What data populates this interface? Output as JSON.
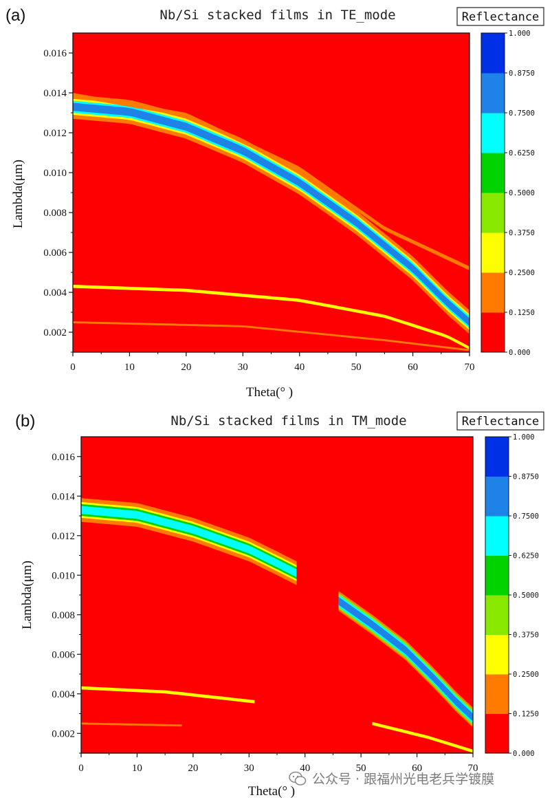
{
  "chart_data": [
    {
      "type": "heatmap",
      "panel_label": "(a)",
      "title": "Nb/Si stacked films in TE_mode",
      "xlabel": "Theta(° )",
      "ylabel": "Lambda(μm)",
      "xlim": [
        0,
        70
      ],
      "ylim": [
        0.001,
        0.017
      ],
      "xticks": [
        0,
        10,
        20,
        30,
        40,
        50,
        60,
        70
      ],
      "yticks": [
        0.002,
        0.004,
        0.006,
        0.008,
        0.01,
        0.012,
        0.014,
        0.016
      ],
      "ytick_labels": [
        "0.002",
        "0.004",
        "0.006",
        "0.008",
        "0.010",
        "0.012",
        "0.014",
        "0.016"
      ],
      "colorbar": {
        "title": "Reflectance",
        "levels": [
          0.0,
          0.125,
          0.25,
          0.375,
          0.5,
          0.625,
          0.75,
          0.875,
          1.0
        ],
        "labels": [
          "0.000",
          "0.1250",
          "0.2500",
          "0.3750",
          "0.5000",
          "0.6250",
          "0.7500",
          "0.8750",
          "1.000"
        ],
        "colors": [
          "#ff0000",
          "#ff7b00",
          "#ffff00",
          "#88e800",
          "#00d200",
          "#00ffff",
          "#1e82e6",
          "#0030e6"
        ]
      },
      "background_level": 0.05,
      "bands": [
        {
          "name": "main-bragg-band",
          "theta": [
            0,
            10,
            20,
            30,
            40,
            50,
            60,
            66,
            70
          ],
          "center": [
            0.0133,
            0.01305,
            0.0123,
            0.0111,
            0.0095,
            0.0075,
            0.0052,
            0.0035,
            0.0025
          ],
          "layers": [
            [
              0.0006,
              0.125
            ],
            [
              0.0004,
              0.25
            ],
            [
              0.0003,
              0.625
            ],
            [
              0.0002,
              0.75
            ]
          ]
        },
        {
          "name": "upper-edge-fringe",
          "theta": [
            0,
            20,
            40,
            55,
            70
          ],
          "center": [
            0.0139,
            0.0129,
            0.0102,
            0.0072,
            0.0052
          ],
          "layers": [
            [
              0.0001,
              0.125
            ]
          ]
        },
        {
          "name": "second-order-band",
          "theta": [
            0,
            20,
            40,
            55,
            66,
            70
          ],
          "center": [
            0.0043,
            0.0041,
            0.0036,
            0.0028,
            0.0018,
            0.0012
          ],
          "layers": [
            [
              8e-05,
              0.25
            ]
          ]
        },
        {
          "name": "third-order-band",
          "theta": [
            0,
            30,
            55,
            70
          ],
          "center": [
            0.0025,
            0.0023,
            0.0016,
            0.0011
          ],
          "layers": [
            [
              5e-05,
              0.125
            ]
          ]
        }
      ]
    },
    {
      "type": "heatmap",
      "panel_label": "(b)",
      "title": "Nb/Si stacked films in TM_mode",
      "xlabel": "Theta(° )",
      "ylabel": "Lambda(μm)",
      "xlim": [
        0,
        70
      ],
      "ylim": [
        0.001,
        0.017
      ],
      "xticks": [
        0,
        10,
        20,
        30,
        40,
        50,
        60,
        70
      ],
      "yticks": [
        0.002,
        0.004,
        0.006,
        0.008,
        0.01,
        0.012,
        0.014,
        0.016
      ],
      "ytick_labels": [
        "0.002",
        "0.004",
        "0.006",
        "0.008",
        "0.010",
        "0.012",
        "0.014",
        "0.016"
      ],
      "colorbar": {
        "title": "Reflectance",
        "levels": [
          0.0,
          0.125,
          0.25,
          0.375,
          0.5,
          0.625,
          0.75,
          0.875,
          1.0
        ],
        "labels": [
          "0.000",
          "0.1250",
          "0.2500",
          "0.3750",
          "0.5000",
          "0.6250",
          "0.7500",
          "0.8750",
          "1.000"
        ],
        "colors": [
          "#ff0000",
          "#ff7b00",
          "#ffff00",
          "#88e800",
          "#00d200",
          "#00ffff",
          "#1e82e6",
          "#0030e6"
        ]
      },
      "background_level": 0.05,
      "bands": [
        {
          "name": "main-band-low-angle",
          "theta": [
            0,
            10,
            20,
            30,
            35,
            38.5
          ],
          "center": [
            0.0133,
            0.01305,
            0.0123,
            0.0113,
            0.0106,
            0.0101
          ],
          "layers": [
            [
              0.0006,
              0.125
            ],
            [
              0.0004,
              0.25
            ],
            [
              0.0003,
              0.5
            ],
            [
              0.0002,
              0.625
            ]
          ]
        },
        {
          "name": "main-band-high-angle",
          "theta": [
            46,
            52,
            58,
            63,
            67,
            70
          ],
          "center": [
            0.0087,
            0.0075,
            0.0062,
            0.0048,
            0.0036,
            0.0028
          ],
          "layers": [
            [
              0.0005,
              0.125
            ],
            [
              0.0004,
              0.375
            ],
            [
              0.0003,
              0.625
            ],
            [
              0.0002,
              0.75
            ]
          ]
        },
        {
          "name": "second-order-band",
          "theta": [
            0,
            15,
            31
          ],
          "center": [
            0.0043,
            0.0041,
            0.0036
          ],
          "layers": [
            [
              8e-05,
              0.25
            ]
          ]
        },
        {
          "name": "third-order-band",
          "theta": [
            0,
            18
          ],
          "center": [
            0.0025,
            0.0024
          ],
          "layers": [
            [
              5e-05,
              0.125
            ]
          ]
        },
        {
          "name": "high-angle-fringe",
          "theta": [
            52,
            62,
            70
          ],
          "center": [
            0.0025,
            0.0018,
            0.0011
          ],
          "layers": [
            [
              8e-05,
              0.25
            ]
          ]
        }
      ]
    }
  ],
  "watermark": {
    "text": "公众号 · 跟福州光电老兵学镀膜"
  }
}
